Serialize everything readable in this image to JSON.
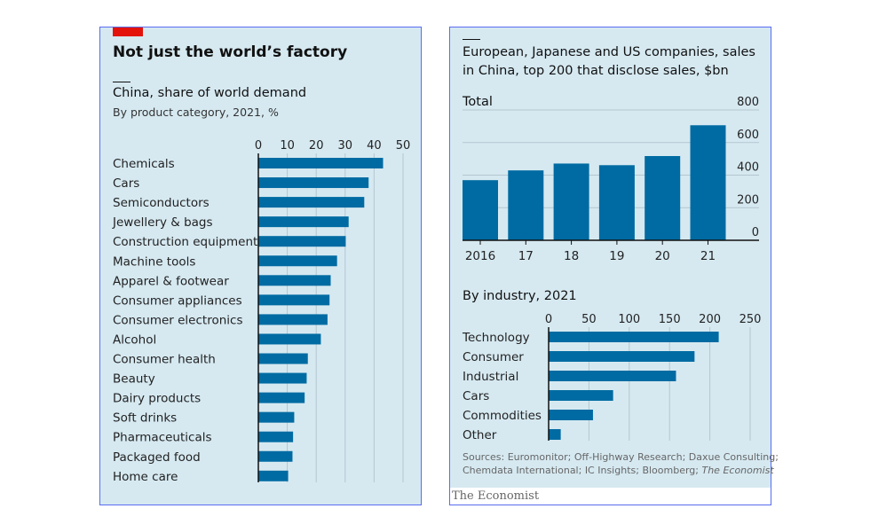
{
  "left": {
    "headline": "Not just the world’s factory",
    "chart_data": {
      "type": "bar",
      "orientation": "horizontal",
      "title": "China, share of world demand",
      "subtitle": "By product category, 2021, %",
      "xlim": [
        0,
        50
      ],
      "ticks": [
        "0",
        "10",
        "20",
        "30",
        "40",
        "50"
      ],
      "grid": true,
      "categories": [
        "Chemicals",
        "Cars",
        "Semiconductors",
        "Jewellery & bags",
        "Construction equipment",
        "Machine tools",
        "Apparel & footwear",
        "Consumer appliances",
        "Consumer electronics",
        "Alcohol",
        "Consumer health",
        "Beauty",
        "Dairy products",
        "Soft drinks",
        "Pharmaceuticals",
        "Packaged food",
        "Home care"
      ],
      "values": [
        43.1,
        38.1,
        36.6,
        31.2,
        30.2,
        27.2,
        25.0,
        24.6,
        23.9,
        21.6,
        17.1,
        16.7,
        16.0,
        12.4,
        12.0,
        11.8,
        10.3
      ],
      "color": "#006ba2"
    }
  },
  "right": {
    "headline": "European, Japanese and US companies, sales in China, top 200 that disclose sales, $bn",
    "chart_data": [
      {
        "type": "bar",
        "title": "Total",
        "categories": [
          "2016",
          "17",
          "18",
          "19",
          "20",
          "21"
        ],
        "values": [
          369,
          429,
          471,
          461,
          517,
          706
        ],
        "ylim": [
          0,
          800
        ],
        "ticks": [
          "0",
          "200",
          "400",
          "600",
          "800"
        ],
        "grid": true,
        "color": "#006ba2"
      },
      {
        "type": "bar",
        "orientation": "horizontal",
        "title": "By industry, 2021",
        "categories": [
          "Technology",
          "Consumer",
          "Industrial",
          "Cars",
          "Commodities",
          "Other"
        ],
        "values": [
          211,
          181,
          158,
          80,
          55,
          15
        ],
        "xlim": [
          0,
          250
        ],
        "ticks": [
          "0",
          "50",
          "100",
          "150",
          "200",
          "250"
        ],
        "grid": true,
        "color": "#006ba2"
      }
    ],
    "sources_line1": "Sources: Euromonitor; Off-Highway Research; Daxue Consulting;",
    "sources_line2": "Chemdata International; IC Insights; Bloomberg; ",
    "sources_italic": "The Economist",
    "watermark": "The Economist"
  }
}
